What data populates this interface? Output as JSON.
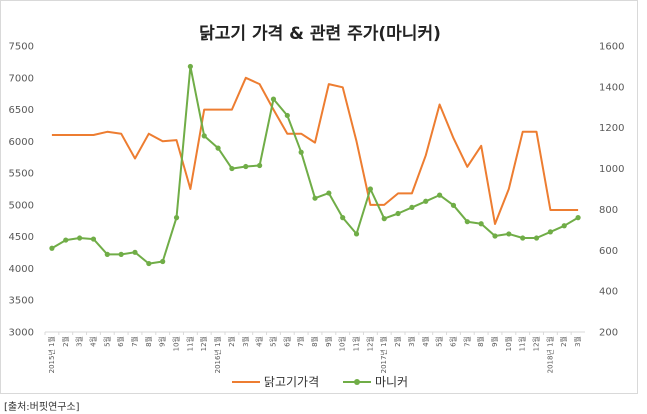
{
  "source": "[출처:버핏연구소]",
  "chart_data": {
    "type": "line",
    "title": "닭고기 가격 & 관련 주가(마니커)",
    "left_axis": {
      "min": 3000,
      "max": 7500,
      "step": 500,
      "ticks": [
        "3000",
        "3500",
        "4000",
        "4500",
        "5000",
        "5500",
        "6000",
        "6500",
        "7000",
        "7500"
      ]
    },
    "right_axis": {
      "min": 200,
      "max": 1600,
      "step": 200,
      "ticks": [
        "200",
        "400",
        "600",
        "800",
        "1000",
        "1200",
        "1400",
        "1600"
      ]
    },
    "x_labels": [
      "2015년 1월",
      "2월",
      "3월",
      "4월",
      "5월",
      "6월",
      "7월",
      "8월",
      "9월",
      "10월",
      "11월",
      "12월",
      "2016년 1월",
      "2월",
      "3월",
      "4월",
      "5월",
      "6월",
      "7월",
      "8월",
      "9월",
      "10월",
      "11월",
      "12월",
      "2017년 1월",
      "2월",
      "3월",
      "4월",
      "5월",
      "6월",
      "7월",
      "8월",
      "9월",
      "10월",
      "11월",
      "12월",
      "2018년 1월",
      "2월",
      "3월"
    ],
    "legend_position": "bottom",
    "grid": false,
    "series": [
      {
        "name": "닭고기가격",
        "axis": "left",
        "color": "#ED7D31",
        "marker": false,
        "values": [
          6100,
          6100,
          6100,
          6100,
          6150,
          6120,
          5730,
          6120,
          6000,
          6020,
          5250,
          6500,
          6500,
          6500,
          7000,
          6900,
          6500,
          6120,
          6120,
          5980,
          6900,
          6850,
          6000,
          5000,
          5000,
          5180,
          5180,
          5780,
          6580,
          6050,
          5600,
          5930,
          4700,
          5250,
          6150,
          6150,
          4920,
          4920,
          4920
        ]
      },
      {
        "name": "마니커",
        "axis": "right",
        "color": "#70AD47",
        "marker": true,
        "values": [
          610,
          650,
          660,
          655,
          580,
          580,
          590,
          535,
          545,
          760,
          1500,
          1160,
          1100,
          1000,
          1010,
          1015,
          1340,
          1260,
          1080,
          855,
          880,
          760,
          680,
          900,
          755,
          780,
          810,
          840,
          870,
          820,
          740,
          730,
          670,
          680,
          660,
          660,
          690,
          720,
          760
        ]
      }
    ]
  }
}
